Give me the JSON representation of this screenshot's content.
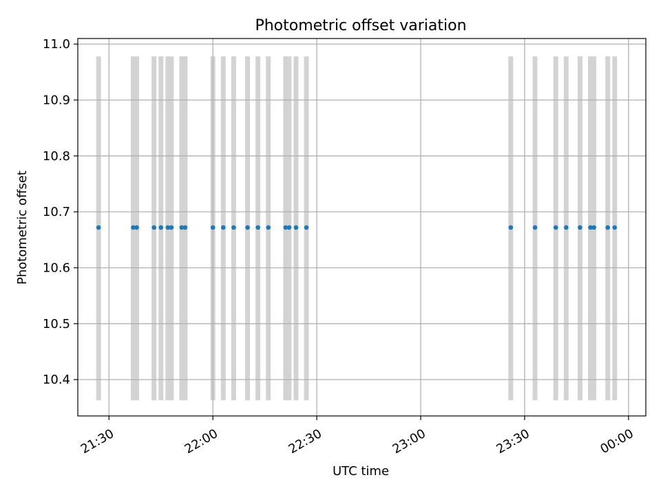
{
  "chart_data": {
    "type": "scatter",
    "title": "Photometric offset variation",
    "xlabel": "UTC time",
    "ylabel": "Photometric offset",
    "x_axis": {
      "kind": "time",
      "range": [
        "21:21",
        "00:05"
      ],
      "ticks": [
        "21:30",
        "22:00",
        "22:30",
        "23:00",
        "23:30",
        "00:00"
      ]
    },
    "y_axis": {
      "range": [
        10.335,
        11.01
      ],
      "ticks": [
        "10.4",
        "10.5",
        "10.6",
        "10.7",
        "10.8",
        "10.9",
        "11.0"
      ]
    },
    "grid": true,
    "band_range": [
      10.363,
      10.978
    ],
    "bands": [
      "21:27",
      "21:37",
      "21:38",
      "21:43",
      "21:45",
      "21:47",
      "21:48",
      "21:51",
      "21:52",
      "22:00",
      "22:03",
      "22:06",
      "22:10",
      "22:13",
      "22:16",
      "22:21",
      "22:22",
      "22:24",
      "22:27",
      "23:26",
      "23:33",
      "23:39",
      "23:42",
      "23:46",
      "23:49",
      "23:50",
      "23:54",
      "23:56"
    ],
    "series": [
      {
        "x": [
          "21:27",
          "21:37",
          "21:38",
          "21:43",
          "21:45",
          "21:47",
          "21:48",
          "21:51",
          "21:52",
          "22:00",
          "22:03",
          "22:06",
          "22:10",
          "22:13",
          "22:16",
          "22:21",
          "22:22",
          "22:24",
          "22:27",
          "23:26",
          "23:33",
          "23:39",
          "23:42",
          "23:46",
          "23:49",
          "23:50",
          "23:54",
          "23:56"
        ],
        "y": [
          10.672,
          10.672,
          10.672,
          10.672,
          10.672,
          10.672,
          10.672,
          10.672,
          10.672,
          10.672,
          10.672,
          10.672,
          10.672,
          10.672,
          10.672,
          10.672,
          10.672,
          10.672,
          10.672,
          10.672,
          10.672,
          10.672,
          10.672,
          10.672,
          10.672,
          10.672,
          10.672,
          10.672
        ]
      }
    ],
    "colors": {
      "points": "#1f77b4",
      "bands": "#d3d3d3",
      "grid": "#b0b0b0"
    }
  }
}
